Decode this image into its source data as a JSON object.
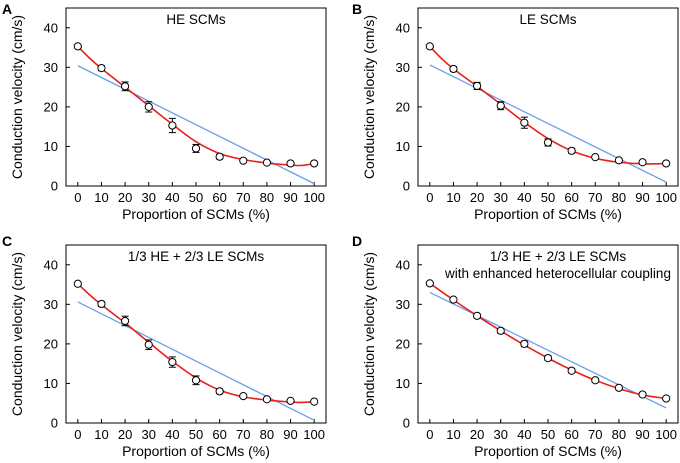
{
  "chart_data": [
    {
      "type": "scatter",
      "panel": "A",
      "title": "HE SCMs",
      "subtitle": "",
      "xlabel": "Proportion of SCMs (%)",
      "ylabel": "Conduction velocity (cm/s)",
      "xlim": [
        -5,
        105
      ],
      "ylim": [
        0,
        45
      ],
      "xticks": [
        0,
        10,
        20,
        30,
        40,
        50,
        60,
        70,
        80,
        90,
        100
      ],
      "yticks": [
        0,
        10,
        20,
        30,
        40
      ],
      "x": [
        0,
        10,
        20,
        30,
        40,
        50,
        60,
        70,
        80,
        90,
        100
      ],
      "y": [
        35.3,
        29.8,
        25.2,
        20.0,
        15.3,
        9.5,
        7.4,
        6.4,
        5.9,
        5.7,
        5.7
      ],
      "error": [
        0.3,
        0.6,
        1.1,
        1.3,
        1.8,
        1.0,
        0.6,
        0.4,
        0.3,
        0.3,
        0.3
      ],
      "fit_curve": {
        "color": "#e8201a",
        "x": [
          0,
          5,
          10,
          20,
          30,
          40,
          50,
          60,
          70,
          80,
          90,
          95,
          100
        ],
        "y": [
          35.3,
          32.3,
          29.7,
          25.0,
          20.3,
          15.6,
          11.2,
          8.2,
          6.7,
          5.8,
          5.3,
          5.2,
          5.7
        ]
      },
      "linear_fit": {
        "color": "#6b9ee8",
        "x": [
          0,
          100
        ],
        "y": [
          30.4,
          0.6
        ]
      }
    },
    {
      "type": "scatter",
      "panel": "B",
      "title": "LE SCMs",
      "subtitle": "",
      "xlabel": "Proportion of SCMs (%)",
      "ylabel": "Conduction velocity (cm/s)",
      "xlim": [
        -5,
        105
      ],
      "ylim": [
        0,
        45
      ],
      "xticks": [
        0,
        10,
        20,
        30,
        40,
        50,
        60,
        70,
        80,
        90,
        100
      ],
      "yticks": [
        0,
        10,
        20,
        30,
        40
      ],
      "x": [
        0,
        10,
        20,
        30,
        40,
        50,
        60,
        70,
        80,
        90,
        100
      ],
      "y": [
        35.3,
        29.6,
        25.3,
        20.3,
        16.0,
        11.0,
        8.9,
        7.3,
        6.5,
        6.0,
        5.7
      ],
      "error": [
        0.3,
        0.6,
        0.9,
        1.0,
        1.4,
        0.9,
        0.6,
        0.4,
        0.3,
        0.3,
        0.3
      ],
      "fit_curve": {
        "color": "#e8201a",
        "x": [
          0,
          5,
          10,
          20,
          30,
          40,
          50,
          60,
          70,
          80,
          90,
          95,
          100
        ],
        "y": [
          35.3,
          32.2,
          29.6,
          25.2,
          20.7,
          16.1,
          12.0,
          8.9,
          7.0,
          6.0,
          5.6,
          5.6,
          5.7
        ]
      },
      "linear_fit": {
        "color": "#6b9ee8",
        "x": [
          0,
          100
        ],
        "y": [
          30.6,
          1.0
        ]
      }
    },
    {
      "type": "scatter",
      "panel": "C",
      "title": "1/3 HE + 2/3 LE SCMs",
      "subtitle": "",
      "xlabel": "Proportion of SCMs (%)",
      "ylabel": "Conduction velocity (cm/s)",
      "xlim": [
        -5,
        105
      ],
      "ylim": [
        0,
        45
      ],
      "xticks": [
        0,
        10,
        20,
        30,
        40,
        50,
        60,
        70,
        80,
        90,
        100
      ],
      "yticks": [
        0,
        10,
        20,
        30,
        40
      ],
      "x": [
        0,
        10,
        20,
        30,
        40,
        50,
        60,
        70,
        80,
        90,
        100
      ],
      "y": [
        35.2,
        30.1,
        25.8,
        19.8,
        15.4,
        10.8,
        8.0,
        6.8,
        6.0,
        5.6,
        5.4
      ],
      "error": [
        0.3,
        0.6,
        1.2,
        1.2,
        1.3,
        1.1,
        0.6,
        0.4,
        0.3,
        0.3,
        0.3
      ],
      "fit_curve": {
        "color": "#e8201a",
        "x": [
          0,
          5,
          10,
          20,
          30,
          40,
          50,
          60,
          70,
          80,
          90,
          95,
          100
        ],
        "y": [
          35.2,
          32.4,
          29.9,
          25.3,
          20.4,
          15.6,
          11.4,
          8.3,
          6.6,
          5.8,
          5.3,
          5.2,
          5.4
        ]
      },
      "linear_fit": {
        "color": "#6b9ee8",
        "x": [
          0,
          100
        ],
        "y": [
          30.6,
          0.7
        ]
      }
    },
    {
      "type": "scatter",
      "panel": "D",
      "title": "1/3 HE + 2/3 LE SCMs",
      "subtitle": "with enhanced heterocellular coupling",
      "xlabel": "Proportion of SCMs (%)",
      "ylabel": "Conduction velocity (cm/s)",
      "xlim": [
        -5,
        105
      ],
      "ylim": [
        0,
        45
      ],
      "xticks": [
        0,
        10,
        20,
        30,
        40,
        50,
        60,
        70,
        80,
        90,
        100
      ],
      "yticks": [
        0,
        10,
        20,
        30,
        40
      ],
      "x": [
        0,
        10,
        20,
        30,
        40,
        50,
        60,
        70,
        80,
        90,
        100
      ],
      "y": [
        35.3,
        31.2,
        27.1,
        23.3,
        20.0,
        16.4,
        13.2,
        10.8,
        8.9,
        7.2,
        6.2
      ],
      "error": [
        0.3,
        0.4,
        0.5,
        0.6,
        0.7,
        0.6,
        0.5,
        0.4,
        0.3,
        0.3,
        0.3
      ],
      "fit_curve": {
        "color": "#e8201a",
        "x": [
          0,
          10,
          20,
          30,
          40,
          50,
          60,
          70,
          80,
          90,
          100
        ],
        "y": [
          35.3,
          31.1,
          27.1,
          23.3,
          19.7,
          16.4,
          13.4,
          10.8,
          8.7,
          7.1,
          6.2
        ]
      },
      "linear_fit": {
        "color": "#6b9ee8",
        "x": [
          0,
          100
        ],
        "y": [
          33.0,
          3.8
        ]
      }
    }
  ]
}
